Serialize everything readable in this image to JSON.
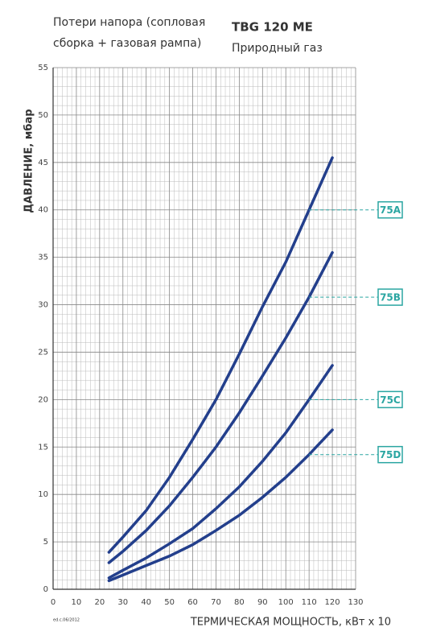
{
  "chart_data": {
    "type": "line",
    "title_lines": [
      "Потери напора (сопловая",
      "сборка + газовая рампа)"
    ],
    "model": "TBG 120 ME",
    "fuel": "Природный газ",
    "ylabel": "ДАВЛЕНИЕ, мбар",
    "xlabel": "ТЕРМИЧЕСКАЯ МОЩНОСТЬ, кВт x 10",
    "note": "ed.c.06/2012",
    "x": [
      24,
      30,
      40,
      50,
      60,
      70,
      80,
      90,
      100,
      110,
      120
    ],
    "series": [
      {
        "name": "75A",
        "color": "#233f8c",
        "values": [
          3.9,
          5.5,
          8.3,
          11.8,
          15.8,
          20,
          24.8,
          29.8,
          34.5,
          40,
          45.5
        ]
      },
      {
        "name": "75B",
        "color": "#233f8c",
        "values": [
          2.8,
          4,
          6.2,
          8.8,
          11.8,
          15,
          18.6,
          22.5,
          26.5,
          30.8,
          35.5
        ]
      },
      {
        "name": "75C",
        "color": "#233f8c",
        "values": [
          1.2,
          2,
          3.3,
          4.8,
          6.4,
          8.5,
          10.8,
          13.5,
          16.5,
          20,
          23.6
        ]
      },
      {
        "name": "75D",
        "color": "#233f8c",
        "values": [
          0.9,
          1.5,
          2.5,
          3.5,
          4.7,
          6.2,
          7.8,
          9.7,
          11.8,
          14.2,
          16.8
        ]
      }
    ],
    "label_color": "#2ba6a2",
    "xlim": [
      0,
      130
    ],
    "xticks": [
      0,
      10,
      20,
      30,
      40,
      50,
      60,
      70,
      80,
      90,
      100,
      110,
      120,
      130
    ],
    "ylim": [
      0,
      55
    ],
    "yticks": [
      0,
      5,
      10,
      15,
      20,
      25,
      30,
      35,
      40,
      45,
      50,
      55
    ],
    "grid": true
  }
}
